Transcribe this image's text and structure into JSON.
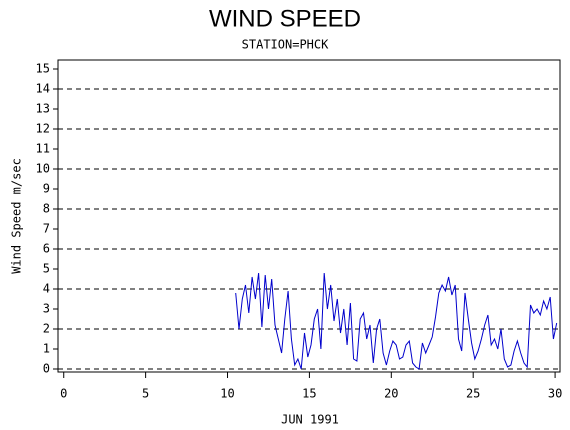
{
  "chart_data": {
    "type": "line",
    "title": "WIND SPEED",
    "subtitle": "STATION=PHCK",
    "x_label": "JUN 1991",
    "y_label": "Wind Speed m/sec",
    "xlim": [
      -0.35,
      30.3
    ],
    "xticks": [
      0,
      5,
      10,
      15,
      20,
      25,
      30
    ],
    "ylim": [
      -0.15,
      15.45
    ],
    "yticks": [
      0,
      1,
      2,
      3,
      4,
      5,
      6,
      7,
      8,
      9,
      10,
      11,
      12,
      13,
      14,
      15
    ],
    "grid_lines": [
      0,
      2,
      4,
      6,
      8,
      10,
      12,
      14
    ],
    "series": [
      {
        "color": "#0000cc",
        "x": [
          10.5,
          10.7,
          10.9,
          11.1,
          11.3,
          11.5,
          11.7,
          11.9,
          12.1,
          12.3,
          12.5,
          12.7,
          12.9,
          13.1,
          13.3,
          13.5,
          13.7,
          13.9,
          14.1,
          14.3,
          14.5,
          14.7,
          14.9,
          15.1,
          15.3,
          15.5,
          15.7,
          15.9,
          16.1,
          16.3,
          16.5,
          16.7,
          16.9,
          17.1,
          17.3,
          17.5,
          17.7,
          17.9,
          18.1,
          18.3,
          18.5,
          18.7,
          18.9,
          19.1,
          19.3,
          19.5,
          19.7,
          19.9,
          20.1,
          20.3,
          20.5,
          20.7,
          20.9,
          21.1,
          21.3,
          21.5,
          21.7,
          21.9,
          22.1,
          22.3,
          22.5,
          22.7,
          22.9,
          23.1,
          23.3,
          23.5,
          23.7,
          23.9,
          24.1,
          24.3,
          24.5,
          24.7,
          24.9,
          25.1,
          25.3,
          25.5,
          25.7,
          25.9,
          26.1,
          26.3,
          26.5,
          26.7,
          26.9,
          27.1,
          27.3,
          27.5,
          27.7,
          27.9,
          28.1,
          28.3,
          28.5,
          28.7,
          28.9,
          29.1,
          29.3,
          29.5,
          29.7,
          29.9,
          30.1
        ],
        "values": [
          3.8,
          2.0,
          3.5,
          4.2,
          2.8,
          4.6,
          3.5,
          4.8,
          2.1,
          4.7,
          3.0,
          4.5,
          2.2,
          1.5,
          0.8,
          2.5,
          3.9,
          1.5,
          0.2,
          0.5,
          0,
          1.8,
          0.6,
          1.2,
          2.5,
          3.0,
          1.0,
          4.8,
          3.0,
          4.2,
          2.4,
          3.5,
          1.8,
          3.0,
          1.2,
          3.3,
          0.5,
          0.4,
          2.5,
          2.8,
          1.5,
          2.2,
          0.3,
          2.0,
          2.5,
          0.8,
          0.2,
          0.9,
          1.4,
          1.2,
          0.5,
          0.6,
          1.2,
          1.4,
          0.3,
          0.1,
          0.0,
          1.3,
          0.8,
          1.2,
          1.6,
          2.6,
          3.8,
          4.2,
          3.9,
          4.6,
          3.7,
          4.2,
          1.5,
          0.9,
          3.8,
          2.5,
          1.3,
          0.5,
          0.9,
          1.5,
          2.2,
          2.7,
          1.2,
          1.5,
          1.0,
          2.0,
          0.5,
          0.1,
          0.2,
          0.9,
          1.4,
          0.8,
          0.3,
          0.1,
          3.2,
          2.8,
          3.0,
          2.7,
          3.4,
          3.0,
          3.6,
          1.5,
          2.3
        ]
      }
    ]
  }
}
